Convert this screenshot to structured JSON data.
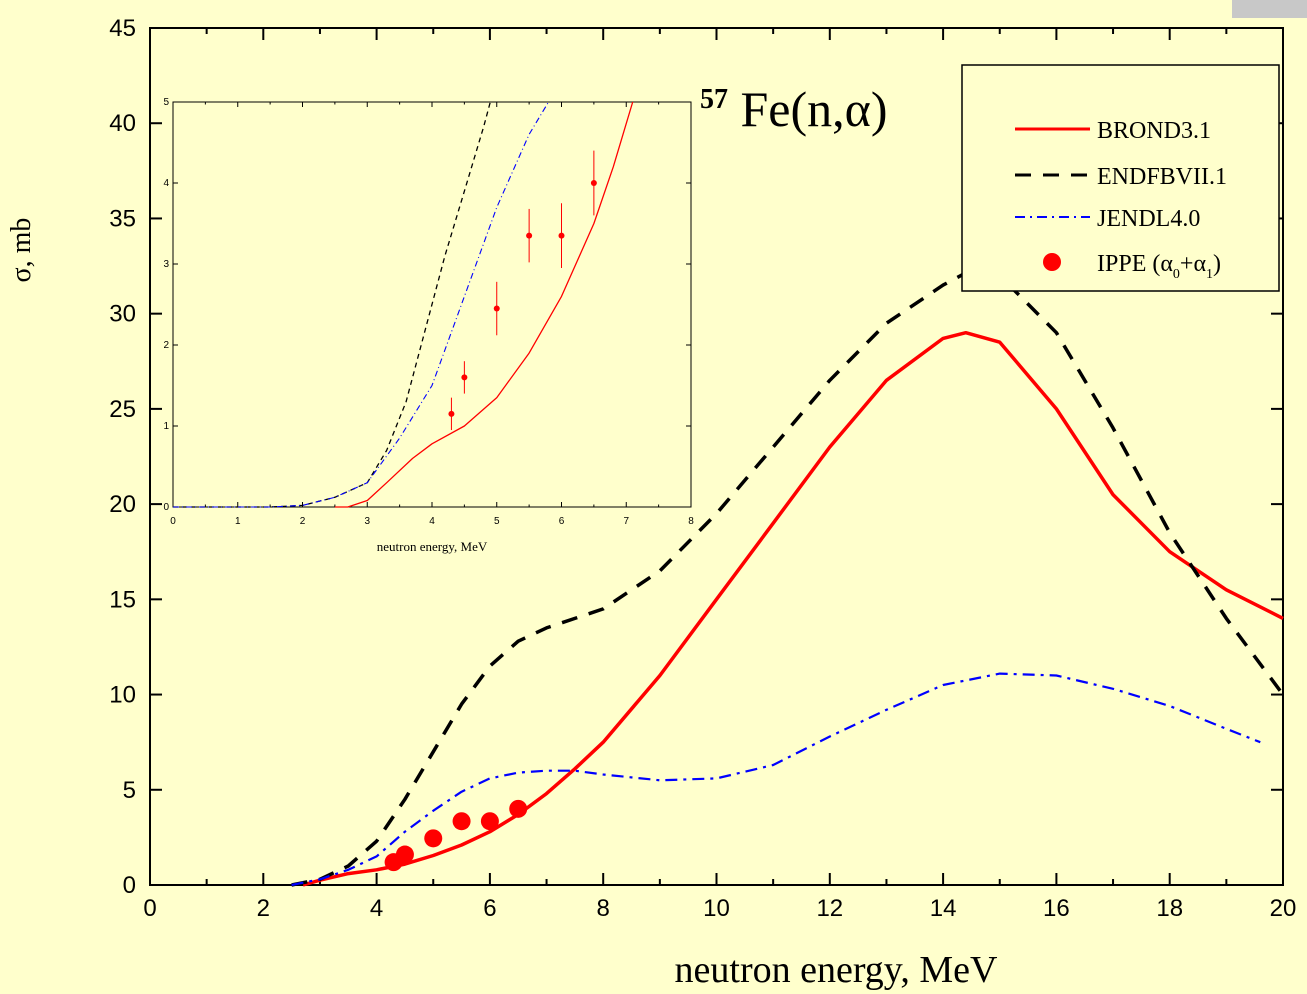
{
  "chart_data": [
    {
      "type": "line",
      "title_prefix": "57",
      "title": "Fe(n,α)",
      "xlabel": "neutron energy, MeV",
      "ylabel": "σ, mb",
      "xlim": [
        0,
        20
      ],
      "ylim": [
        0,
        45
      ],
      "x_ticks": [
        "0",
        "2",
        "4",
        "6",
        "8",
        "10",
        "12",
        "14",
        "16",
        "18",
        "20"
      ],
      "y_ticks": [
        "0",
        "5",
        "10",
        "15",
        "20",
        "25",
        "30",
        "35",
        "40",
        "45"
      ],
      "legend_position": "top-right",
      "legend": {
        "brond": "BROND3.1",
        "endf": "ENDFBVII.1",
        "jendl": "JENDL4.0",
        "ippe_main": "IPPE (α",
        "ippe_sub0": "0",
        "ippe_plus": "+α",
        "ippe_sub1": "1",
        "ippe_close": ")"
      },
      "series": [
        {
          "name": "BROND3.1",
          "style": "solid",
          "color": "#ff0000",
          "x": [
            2.7,
            3.0,
            3.5,
            4.0,
            4.5,
            5.0,
            5.5,
            6.0,
            6.5,
            7.0,
            7.5,
            8.0,
            9.0,
            10.0,
            11.0,
            12.0,
            13.0,
            14.0,
            14.4,
            15.0,
            16.0,
            17.0,
            18.0,
            19.0,
            20.0
          ],
          "y": [
            0,
            0.25,
            0.6,
            0.8,
            1.1,
            1.55,
            2.1,
            2.8,
            3.7,
            4.8,
            6.1,
            7.5,
            11.0,
            15.0,
            19.0,
            23.0,
            26.5,
            28.7,
            29.0,
            28.5,
            25.0,
            20.5,
            17.5,
            15.5,
            14.0
          ]
        },
        {
          "name": "ENDFBVII.1",
          "style": "dashed",
          "color": "#000000",
          "x": [
            2.5,
            3.0,
            3.5,
            4.0,
            4.5,
            5.0,
            5.5,
            6.0,
            6.5,
            7.0,
            7.5,
            8.0,
            9.0,
            10.0,
            11.0,
            12.0,
            13.0,
            14.0,
            14.5,
            15.0,
            16.0,
            17.0,
            18.0,
            19.0,
            20.0
          ],
          "y": [
            0,
            0.3,
            1.0,
            2.3,
            4.5,
            7.0,
            9.5,
            11.5,
            12.8,
            13.5,
            14.0,
            14.5,
            16.5,
            19.5,
            23.0,
            26.5,
            29.5,
            31.5,
            32.3,
            32.0,
            29.0,
            24.0,
            18.5,
            14.0,
            10.0
          ]
        },
        {
          "name": "JENDL4.0",
          "style": "dashdot",
          "color": "#0000ff",
          "x": [
            2.5,
            3.0,
            3.5,
            4.0,
            4.5,
            5.0,
            5.5,
            6.0,
            6.5,
            7.0,
            7.5,
            8.0,
            9.0,
            10.0,
            11.0,
            12.0,
            13.0,
            14.0,
            15.0,
            16.0,
            17.0,
            18.0,
            19.0,
            19.6
          ],
          "y": [
            0,
            0.3,
            0.8,
            1.5,
            2.8,
            3.9,
            4.9,
            5.6,
            5.9,
            6.0,
            6.0,
            5.8,
            5.5,
            5.6,
            6.3,
            7.8,
            9.2,
            10.5,
            11.1,
            11.0,
            10.3,
            9.4,
            8.2,
            7.5
          ]
        }
      ],
      "points": {
        "name": "IPPE (α0+α1)",
        "color": "#ff0000",
        "x": [
          4.3,
          4.5,
          5.0,
          5.5,
          6.0,
          6.5
        ],
        "y": [
          1.2,
          1.6,
          2.45,
          3.35,
          3.35,
          4.0
        ]
      }
    },
    {
      "type": "line",
      "xlabel": "neutron energy, MeV",
      "xlim": [
        0,
        8
      ],
      "ylim": [
        0,
        5
      ],
      "x_ticks": [
        "0",
        "1",
        "2",
        "3",
        "4",
        "5",
        "6",
        "7",
        "8"
      ],
      "y_ticks": [
        "0",
        "1",
        "2",
        "3",
        "4",
        "5"
      ],
      "series": [
        {
          "name": "BROND3.1",
          "style": "solid",
          "color": "#ff0000",
          "x": [
            2.5,
            2.7,
            3.0,
            3.3,
            3.7,
            4.0,
            4.5,
            5.0,
            5.5,
            6.0,
            6.5,
            6.8,
            7.1
          ],
          "y": [
            0,
            0,
            0.08,
            0.3,
            0.6,
            0.78,
            1.0,
            1.35,
            1.9,
            2.6,
            3.5,
            4.2,
            5.0
          ]
        },
        {
          "name": "ENDFBVII.1",
          "style": "dashed",
          "color": "#000000",
          "x": [
            0,
            1.5,
            2.0,
            2.5,
            3.0,
            3.3,
            3.6,
            3.9,
            4.2,
            4.5,
            4.8,
            4.9
          ],
          "y": [
            0,
            0,
            0.02,
            0.12,
            0.3,
            0.7,
            1.3,
            2.2,
            3.1,
            3.9,
            4.7,
            5.0
          ]
        },
        {
          "name": "JENDL4.0",
          "style": "dashdot",
          "color": "#0000ff",
          "x": [
            0,
            1.5,
            2.0,
            2.5,
            3.0,
            3.5,
            4.0,
            4.5,
            5.0,
            5.5,
            5.8
          ],
          "y": [
            0,
            0,
            0.02,
            0.12,
            0.3,
            0.85,
            1.5,
            2.6,
            3.7,
            4.6,
            5.0
          ]
        }
      ],
      "points": {
        "name": "IPPE (α0+α1)",
        "color": "#ff0000",
        "x": [
          4.3,
          4.5,
          5.0,
          5.5,
          6.0,
          6.5
        ],
        "y": [
          1.15,
          1.6,
          2.45,
          3.35,
          3.35,
          4.0
        ],
        "err": [
          0.2,
          0.2,
          0.33,
          0.33,
          0.4,
          0.4
        ]
      }
    }
  ]
}
